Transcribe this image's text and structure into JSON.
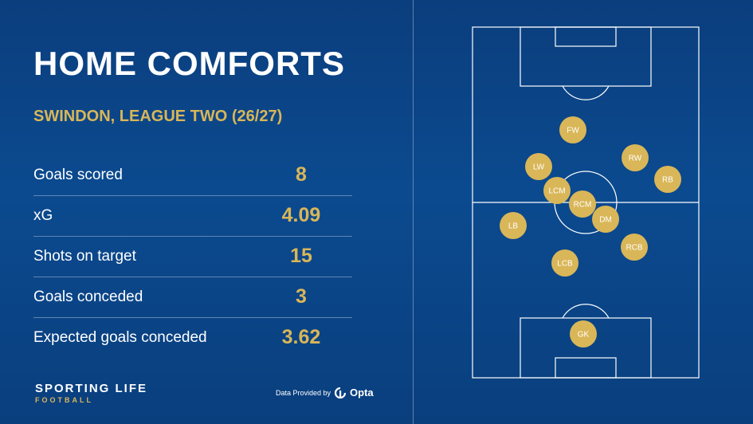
{
  "header": {
    "title": "HOME COMFORTS",
    "subtitle": "SWINDON, LEAGUE TWO (26/27)"
  },
  "stats": [
    {
      "label": "Goals scored",
      "value": "8"
    },
    {
      "label": "xG",
      "value": "4.09"
    },
    {
      "label": "Shots on target",
      "value": "15"
    },
    {
      "label": "Goals conceded",
      "value": "3"
    },
    {
      "label": "Expected goals conceded",
      "value": "3.62"
    }
  ],
  "footer": {
    "brand_main": "SPORTING LIFE",
    "brand_sub": "FOOTBALL",
    "data_credit": "Data Provided by",
    "provider": "Opta"
  },
  "formation": {
    "players": [
      "FW",
      "LW",
      "RW",
      "RB",
      "LCM",
      "RCM",
      "DM",
      "LB",
      "RCB",
      "LCB",
      "GK"
    ]
  },
  "colors": {
    "background": "#0b4a8f",
    "accent_gold": "#d9b658",
    "text": "#ffffff"
  }
}
